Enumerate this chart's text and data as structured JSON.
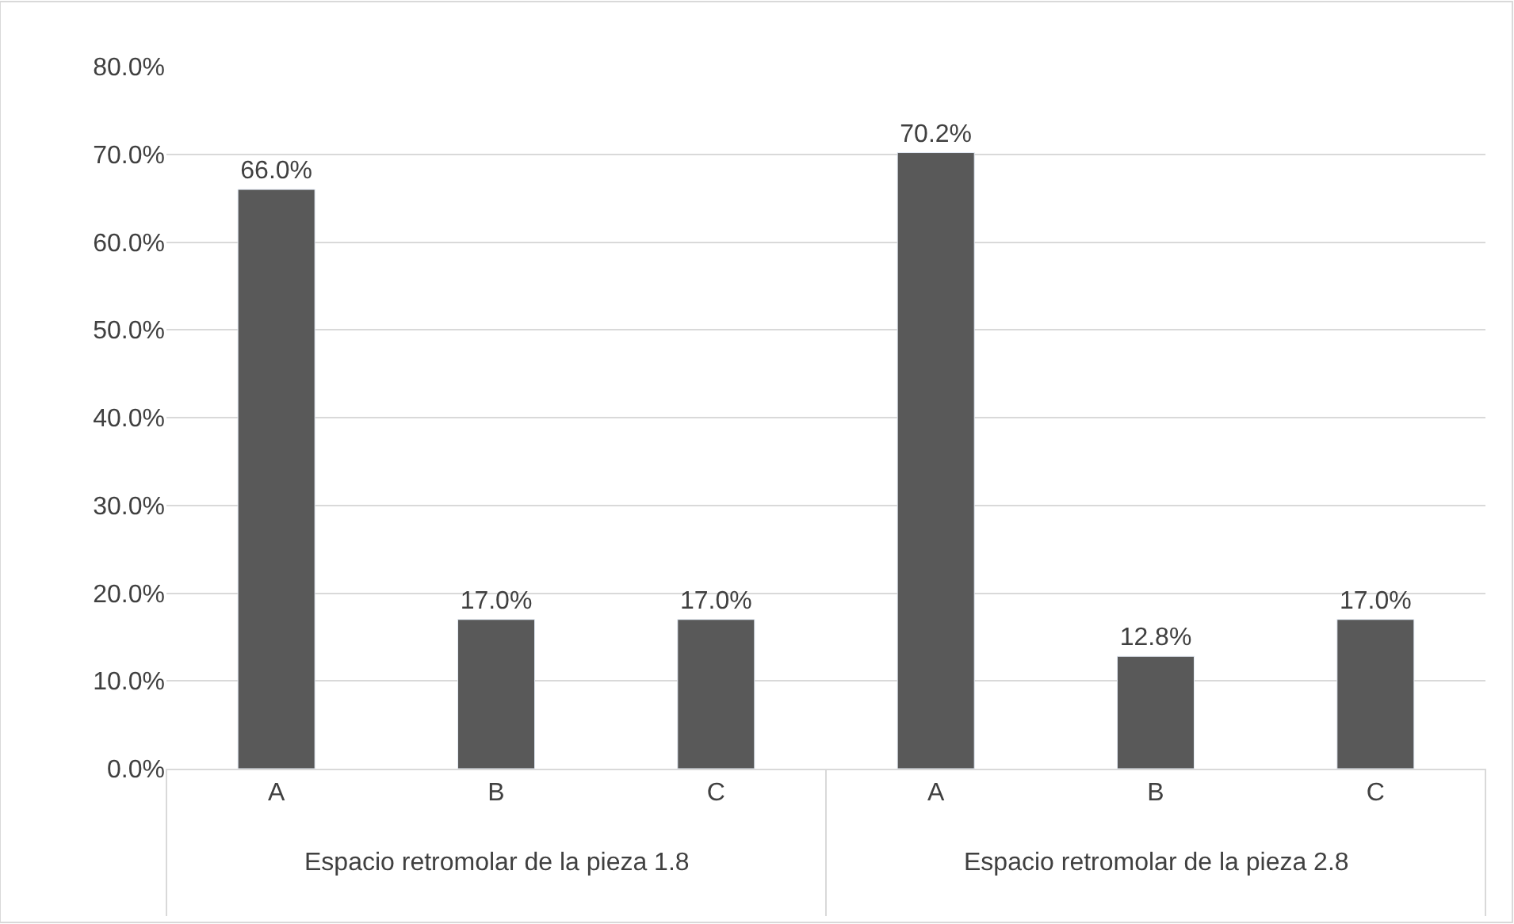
{
  "chart_data": {
    "type": "bar",
    "categories": [
      "A",
      "B",
      "C",
      "A",
      "B",
      "C"
    ],
    "values": [
      66.0,
      17.0,
      17.0,
      70.2,
      12.8,
      17.0
    ],
    "value_labels": [
      "66.0%",
      "17.0%",
      "17.0%",
      "70.2%",
      "12.8%",
      "17.0%"
    ],
    "color": "#595959",
    "ylim": [
      0,
      80
    ],
    "yticks": [
      {
        "value": 0,
        "label": "0.0%"
      },
      {
        "value": 10,
        "label": "10.0%"
      },
      {
        "value": 20,
        "label": "20.0%"
      },
      {
        "value": 30,
        "label": "30.0%"
      },
      {
        "value": 40,
        "label": "40.0%"
      },
      {
        "value": 50,
        "label": "50.0%"
      },
      {
        "value": 60,
        "label": "60.0%"
      },
      {
        "value": 70,
        "label": "70.0%"
      },
      {
        "value": 80,
        "label": "80.0%"
      }
    ],
    "grid": "y",
    "annotations": [
      "Espacio retromolar de la pieza 1.8",
      "Espacio retromolar de la pieza 2.8"
    ]
  }
}
